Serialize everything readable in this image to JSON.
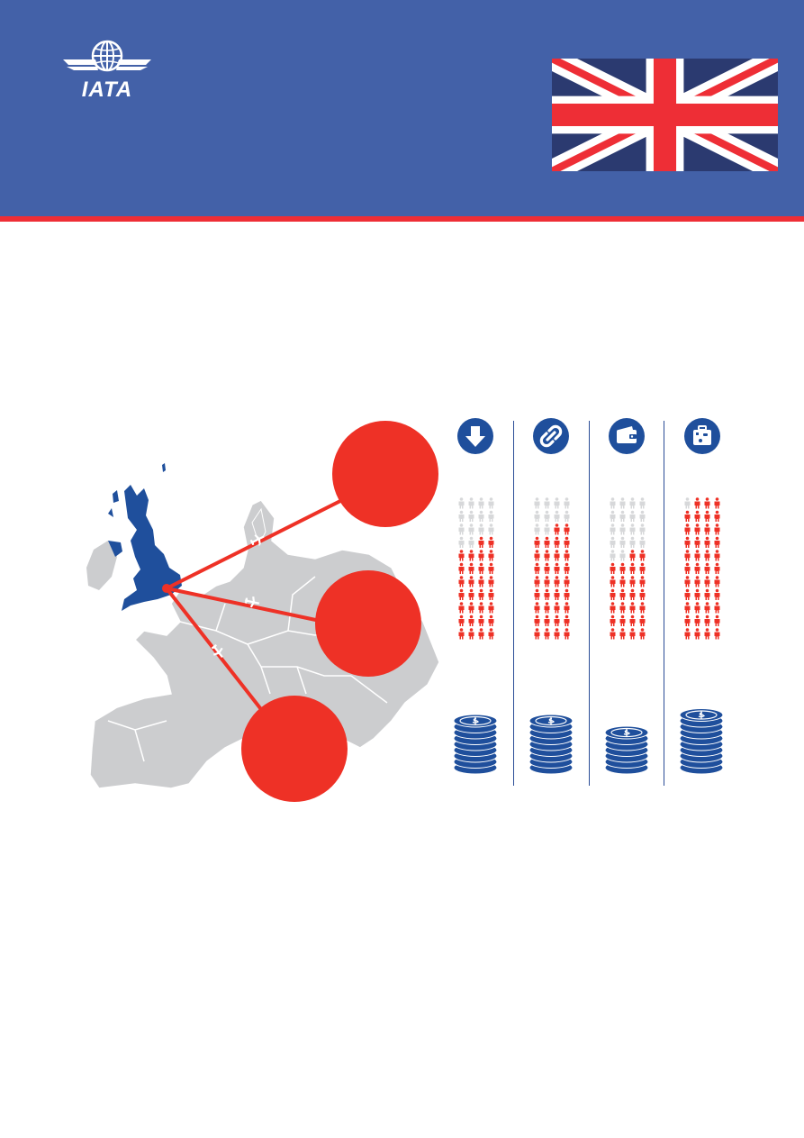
{
  "brand": {
    "logo_text": "IATA",
    "colors": {
      "header_blue": "#4361a8",
      "accent_red": "#ee2e36",
      "dark_blue": "#1f4f9c",
      "map_gray": "#cccdcf"
    }
  },
  "flag": {
    "icon": "union-jack-flag"
  },
  "map": {
    "highlight_country": "united-kingdom",
    "icon": "europe-map"
  },
  "routes": [
    {
      "icon": "plane-icon"
    },
    {
      "icon": "plane-icon"
    },
    {
      "icon": "plane-icon"
    }
  ],
  "columns": [
    {
      "icon": "download-arrow-icon",
      "people_red": 30,
      "people_total": 44,
      "coin_height": 9
    },
    {
      "icon": "chain-link-icon",
      "people_red": 34,
      "people_total": 44,
      "coin_height": 9
    },
    {
      "icon": "wallet-icon",
      "people_red": 26,
      "people_total": 44,
      "coin_height": 7
    },
    {
      "icon": "suitcase-icon",
      "people_red": 43,
      "people_total": 44,
      "coin_height": 10
    }
  ]
}
